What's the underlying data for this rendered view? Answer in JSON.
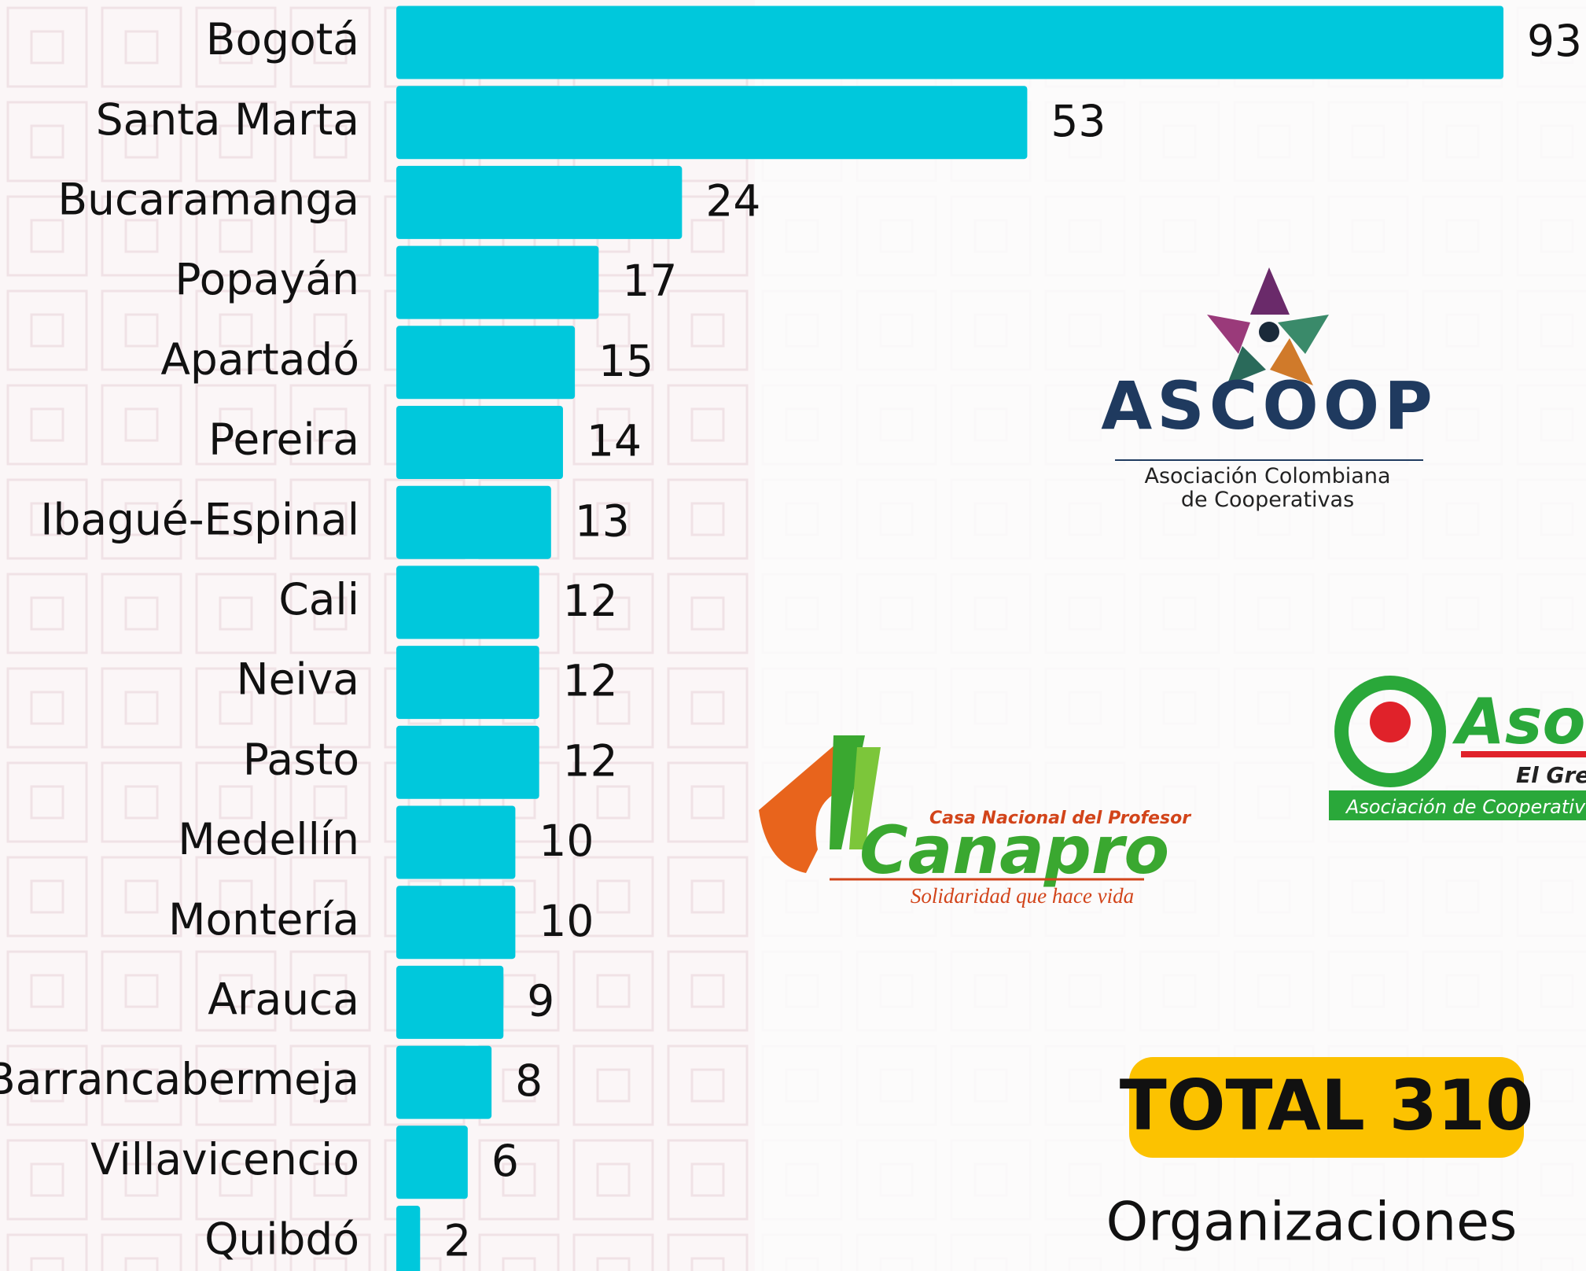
{
  "chart_data": {
    "type": "bar",
    "orientation": "horizontal",
    "categories": [
      "Bogotá",
      "Santa Marta",
      "Bucaramanga",
      "Popayán",
      "Apartadó",
      "Pereira",
      "Ibagué-Espinal",
      "Cali",
      "Neiva",
      "Pasto",
      "Medellín",
      "Montería",
      "Arauca",
      "Barrancabermeja",
      "Villavicencio",
      "Quibdó"
    ],
    "values": [
      93,
      53,
      24,
      17,
      15,
      14,
      13,
      12,
      12,
      12,
      10,
      10,
      9,
      8,
      6,
      2
    ],
    "color": "#00c8dc",
    "total": {
      "title": "TOTAL 310",
      "subtitle": "Organizaciones"
    }
  },
  "logos": {
    "ascoop": {
      "name": "ASCOOP",
      "line1": "Asociación Colombiana",
      "line2": "de Cooperativas"
    },
    "canapro": {
      "top": "Casa Nacional del Profesor",
      "name": "Canapro",
      "slogan": "Solidaridad que hace vida"
    },
    "aso": {
      "name": "Aso",
      "line1": "El Grem",
      "line2": "Asociación de Cooperativas y Emp"
    }
  }
}
